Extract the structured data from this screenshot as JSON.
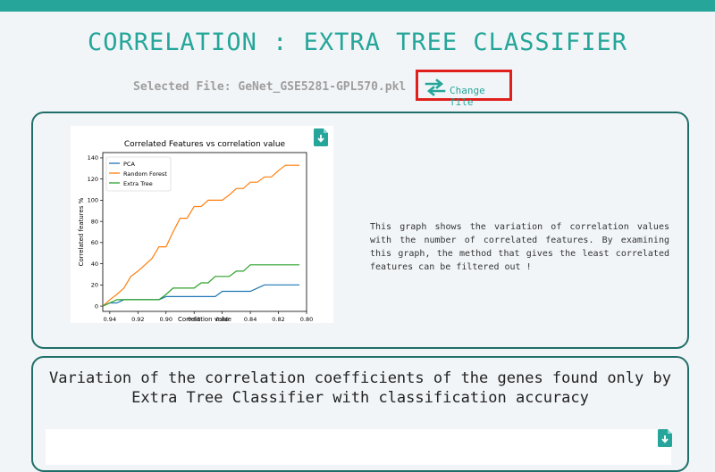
{
  "header": {
    "title": "CORRELATION : EXTRA TREE CLASSIFIER",
    "selected_file": "Selected File: GeNet_GSE5281-GPL570.pkl",
    "change_file_label": "Change file"
  },
  "card1": {
    "description": "This graph shows the variation of correlation values with the number of correlated features. By examining this graph, the method that gives the least correlated features can be filtered out !",
    "download_icon": "download-file-icon"
  },
  "card2": {
    "title": "Variation of the correlation coefficients of the genes found only by Extra Tree Classifier with classification accuracy",
    "download_icon": "download-file-icon"
  },
  "colors": {
    "accent": "#26a69a",
    "border": "#1f6f68",
    "highlight": "#e0201b"
  },
  "chart_data": {
    "type": "line",
    "title": "Correlated Features vs correlation value",
    "xlabel": "Correlation value",
    "ylabel": "Correlated features %",
    "x_ticks": [
      "0.94",
      "0.92",
      "0.90",
      "0.88",
      "0.86",
      "0.84",
      "0.82",
      "0.80"
    ],
    "y_ticks": [
      "0",
      "20",
      "40",
      "60",
      "80",
      "100",
      "120",
      "140"
    ],
    "xlim": [
      0.945,
      0.8
    ],
    "ylim": [
      -5,
      145
    ],
    "legend": "top-left",
    "x": [
      0.945,
      0.94,
      0.935,
      0.93,
      0.925,
      0.92,
      0.915,
      0.91,
      0.905,
      0.9,
      0.895,
      0.89,
      0.885,
      0.88,
      0.875,
      0.87,
      0.865,
      0.86,
      0.855,
      0.85,
      0.845,
      0.84,
      0.835,
      0.83,
      0.825,
      0.82,
      0.815,
      0.81,
      0.805
    ],
    "series": [
      {
        "name": "PCA",
        "color": "#1f77b4",
        "values": [
          0,
          3,
          3,
          6,
          6,
          6,
          6,
          6,
          6,
          9,
          9,
          9,
          9,
          9,
          9,
          9,
          9,
          14,
          14,
          14,
          14,
          14,
          17,
          20,
          20,
          20,
          20,
          20,
          20
        ]
      },
      {
        "name": "Random Forest",
        "color": "#ff7f0e",
        "values": [
          0,
          6,
          11,
          17,
          28,
          33,
          39,
          45,
          56,
          56,
          70,
          83,
          83,
          94,
          94,
          100,
          100,
          100,
          105,
          111,
          111,
          117,
          117,
          122,
          122,
          128,
          133,
          133,
          133
        ]
      },
      {
        "name": "Extra Tree",
        "color": "#2ca02c",
        "values": [
          0,
          3,
          6,
          6,
          6,
          6,
          6,
          6,
          6,
          11,
          17,
          17,
          17,
          17,
          22,
          22,
          28,
          28,
          28,
          33,
          33,
          39,
          39,
          39,
          39,
          39,
          39,
          39,
          39
        ]
      }
    ]
  }
}
